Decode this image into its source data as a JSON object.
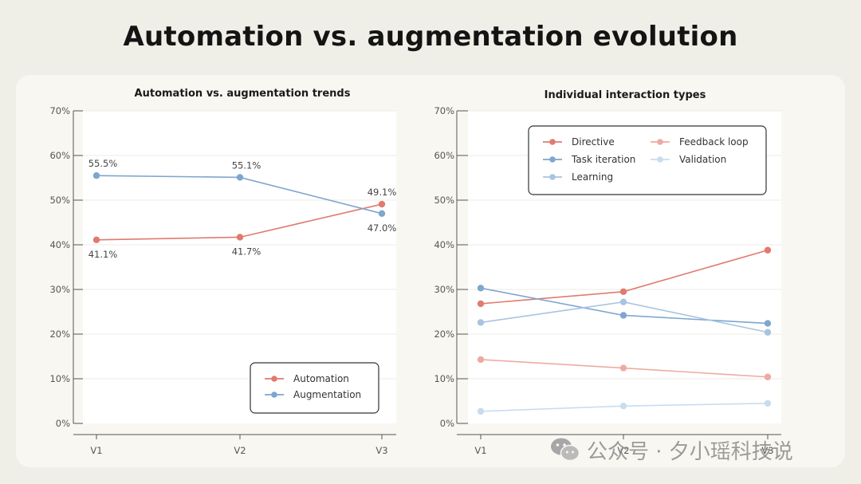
{
  "page": {
    "title": "Automation vs. augmentation evolution",
    "watermark": "公众号 · 夕小瑶科技说"
  },
  "chart_data": [
    {
      "type": "line",
      "title": "Automation vs. augmentation trends",
      "x": [
        "V1",
        "V2",
        "V3"
      ],
      "ylim": [
        0,
        70
      ],
      "yticks": [
        "0%",
        "10%",
        "20%",
        "30%",
        "40%",
        "50%",
        "60%",
        "70%"
      ],
      "grid": true,
      "legend_position": "bottom-right",
      "series": [
        {
          "name": "Automation",
          "color": "#e07b6e",
          "values": [
            41.1,
            41.7,
            49.1
          ],
          "labels": [
            "41.1%",
            "41.7%",
            "49.1%"
          ]
        },
        {
          "name": "Augmentation",
          "color": "#7ea6cf",
          "values": [
            55.5,
            55.1,
            47.0
          ],
          "labels": [
            "55.5%",
            "55.1%",
            "47.0%"
          ]
        }
      ]
    },
    {
      "type": "line",
      "title": "Individual interaction types",
      "x": [
        "V1",
        "V2",
        "V3"
      ],
      "ylim": [
        0,
        70
      ],
      "yticks": [
        "0%",
        "10%",
        "20%",
        "30%",
        "40%",
        "50%",
        "60%",
        "70%"
      ],
      "grid": true,
      "legend_position": "top",
      "series": [
        {
          "name": "Directive",
          "color": "#e07b6e",
          "values": [
            26.8,
            29.5,
            38.8
          ]
        },
        {
          "name": "Feedback loop",
          "color": "#eeaaa2",
          "values": [
            14.3,
            12.4,
            10.4
          ]
        },
        {
          "name": "Task iteration",
          "color": "#7ea6cf",
          "values": [
            30.3,
            24.2,
            22.4
          ]
        },
        {
          "name": "Validation",
          "color": "#c9dcee",
          "values": [
            2.7,
            3.9,
            4.5
          ]
        },
        {
          "name": "Learning",
          "color": "#a8c4df",
          "values": [
            22.6,
            27.2,
            20.4
          ]
        }
      ]
    }
  ]
}
